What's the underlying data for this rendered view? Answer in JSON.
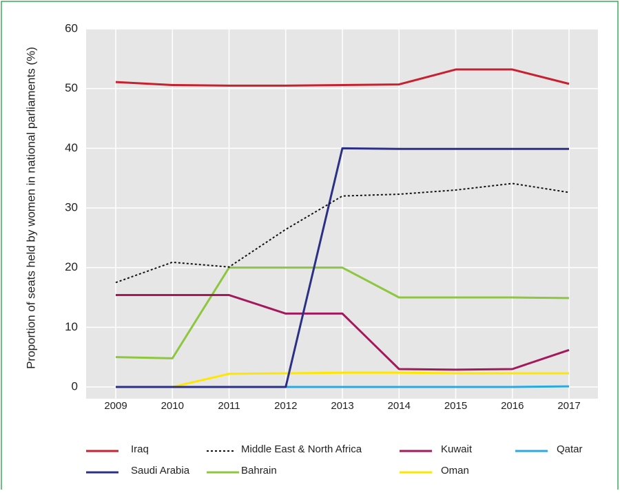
{
  "chart_data": {
    "type": "line",
    "ylabel": "Proportion of seats held by women in national parliaments (%)",
    "categories": [
      "2009",
      "2010",
      "2011",
      "2012",
      "2013",
      "2014",
      "2015",
      "2016",
      "2017"
    ],
    "ylim": [
      0,
      60
    ],
    "yticks": [
      0,
      10,
      20,
      30,
      40,
      50,
      60
    ],
    "grid": true,
    "series": [
      {
        "name": "Iraq",
        "color": "#c8202f",
        "values": [
          51.1,
          50.6,
          50.5,
          50.5,
          50.6,
          50.7,
          53.2,
          53.2,
          50.8
        ]
      },
      {
        "name": "Middle East & North Africa",
        "color": "#111111",
        "dashed": true,
        "values": [
          17.5,
          20.9,
          20.1,
          26.4,
          32.0,
          32.3,
          33.0,
          34.1,
          32.6
        ]
      },
      {
        "name": "Kuwait",
        "color": "#a3195b",
        "values": [
          15.4,
          15.4,
          15.4,
          12.3,
          12.3,
          3.0,
          2.9,
          3.0,
          6.2
        ]
      },
      {
        "name": "Qatar",
        "color": "#29a9e0",
        "values": [
          0,
          0,
          0,
          0,
          0,
          0,
          0,
          0,
          0.1
        ]
      },
      {
        "name": "Saudi Arabia",
        "color": "#2b2f86",
        "values": [
          0,
          0,
          0,
          0,
          40,
          39.9,
          39.9,
          39.9,
          39.9
        ]
      },
      {
        "name": "Bahrain",
        "color": "#8dc63f",
        "values": [
          5.0,
          4.8,
          20.0,
          20.0,
          20.0,
          15.0,
          15.0,
          15.0,
          14.9
        ]
      },
      {
        "name": "Oman",
        "color": "#ffe600",
        "values": [
          0,
          0,
          2.2,
          2.3,
          2.4,
          2.4,
          2.3,
          2.3,
          2.3
        ]
      }
    ]
  }
}
